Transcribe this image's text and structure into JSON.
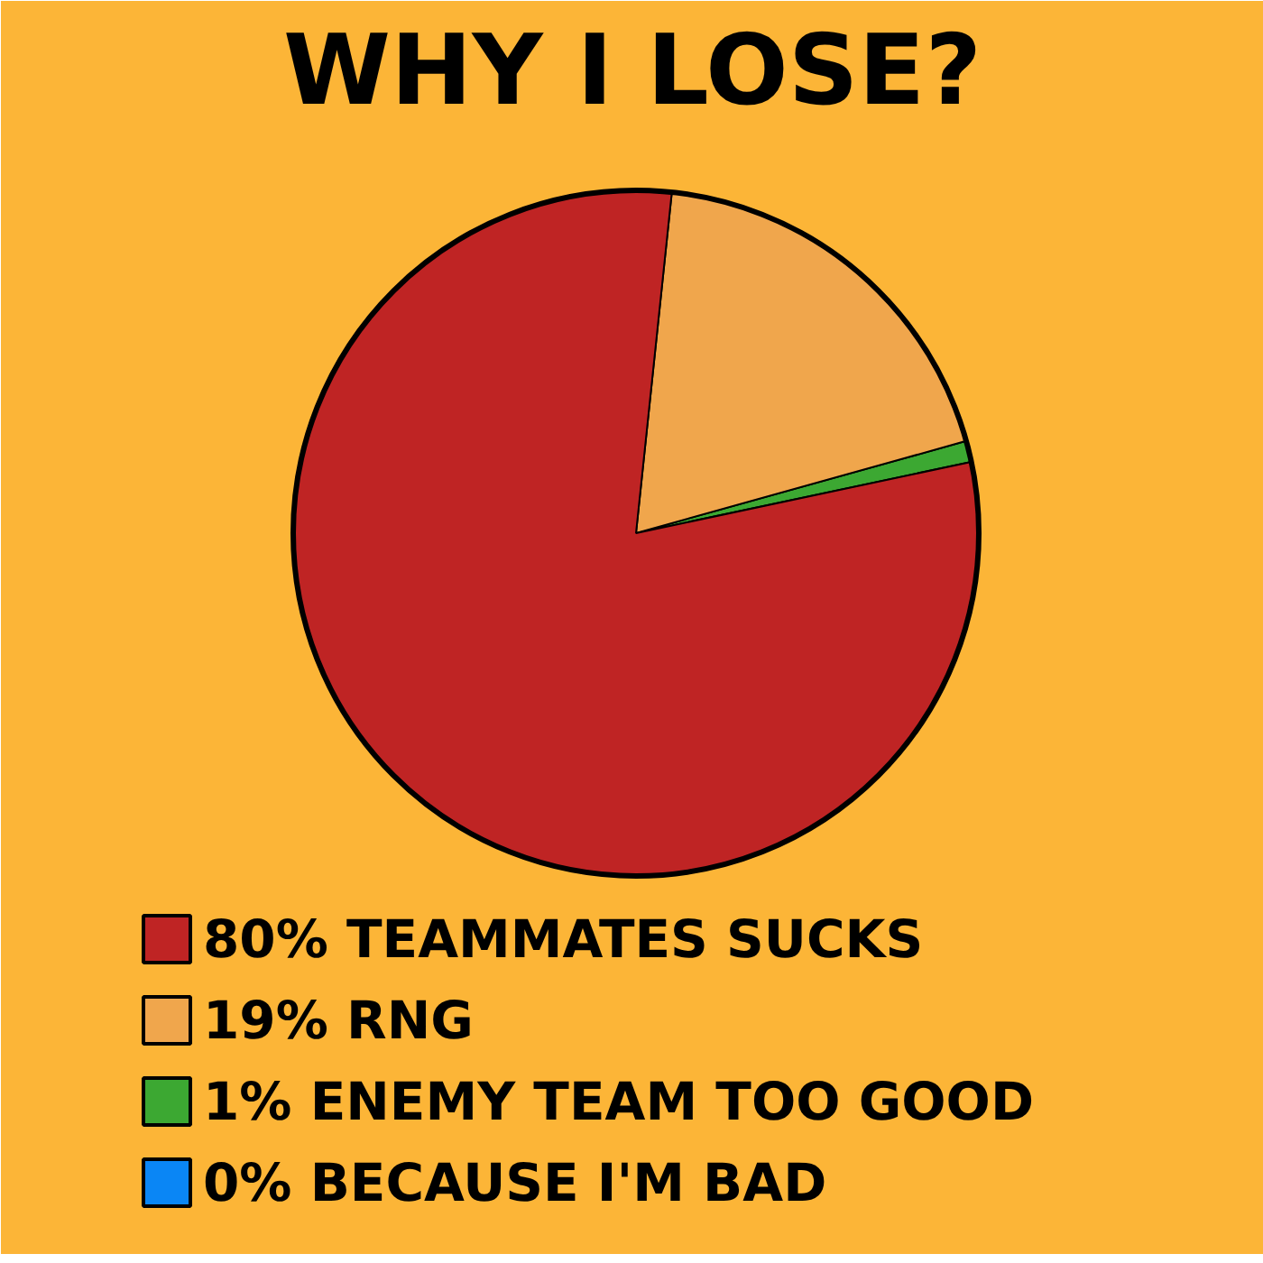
{
  "chart_data": {
    "type": "pie",
    "title": "WHY I LOSE?",
    "categories": [
      "80% TEAMMATES SUCKS",
      "19% RNG",
      "1% ENEMY TEAM TOO GOOD",
      "0% BECAUSE I'M BAD"
    ],
    "values": [
      80,
      19,
      1,
      0
    ],
    "colors": [
      "#bf2424",
      "#f0a64c",
      "#3ca832",
      "#0a86f5"
    ],
    "legend": "bottom"
  }
}
